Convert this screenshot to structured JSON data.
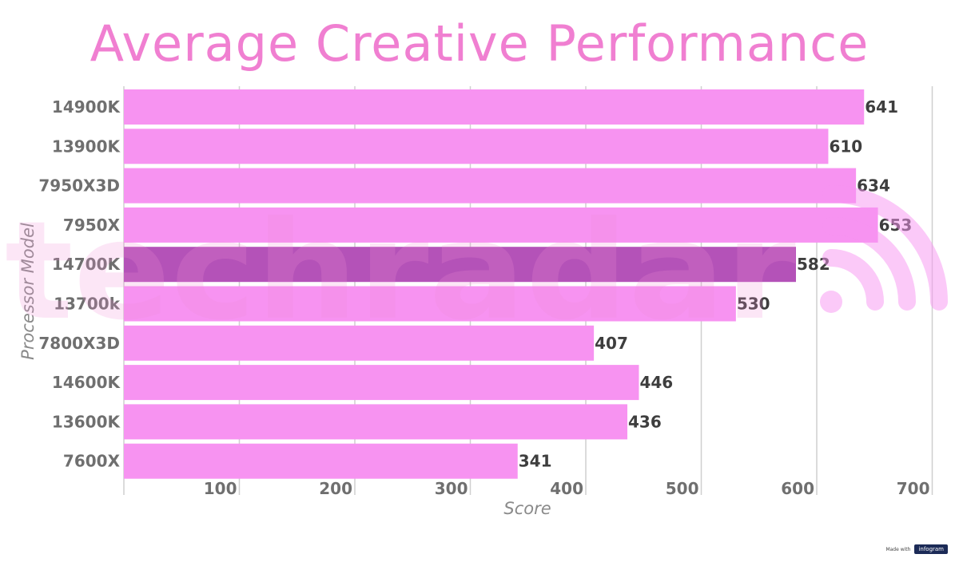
{
  "chart_data": {
    "type": "bar",
    "orientation": "horizontal",
    "title": "Average Creative Performance",
    "xlabel": "Score",
    "ylabel": "Processor Model",
    "xlim": [
      0,
      720
    ],
    "xticks": [
      100,
      200,
      300,
      400,
      500,
      600,
      700
    ],
    "grid": true,
    "categories": [
      "14900K",
      "13900K",
      "7950X3D",
      "7950X",
      "14700K",
      "13700k",
      "7800X3D",
      "14600K",
      "13600K",
      "7600X"
    ],
    "values": [
      641,
      610,
      634,
      653,
      582,
      530,
      407,
      446,
      436,
      341
    ],
    "highlight": "14700K",
    "colors": {
      "bar": "#f793f1",
      "highlight_bar": "#b452b8",
      "title": "#f07fd1",
      "label": "#6f6f6f",
      "value_label": "#3e3e3e",
      "grid": "#cfcfcf",
      "watermark": "#fbd3f6"
    }
  },
  "watermark": {
    "text": "techradar",
    "icon": "signal-arcs-icon"
  },
  "footer": {
    "made_with": "Made with",
    "brand": "infogram"
  }
}
